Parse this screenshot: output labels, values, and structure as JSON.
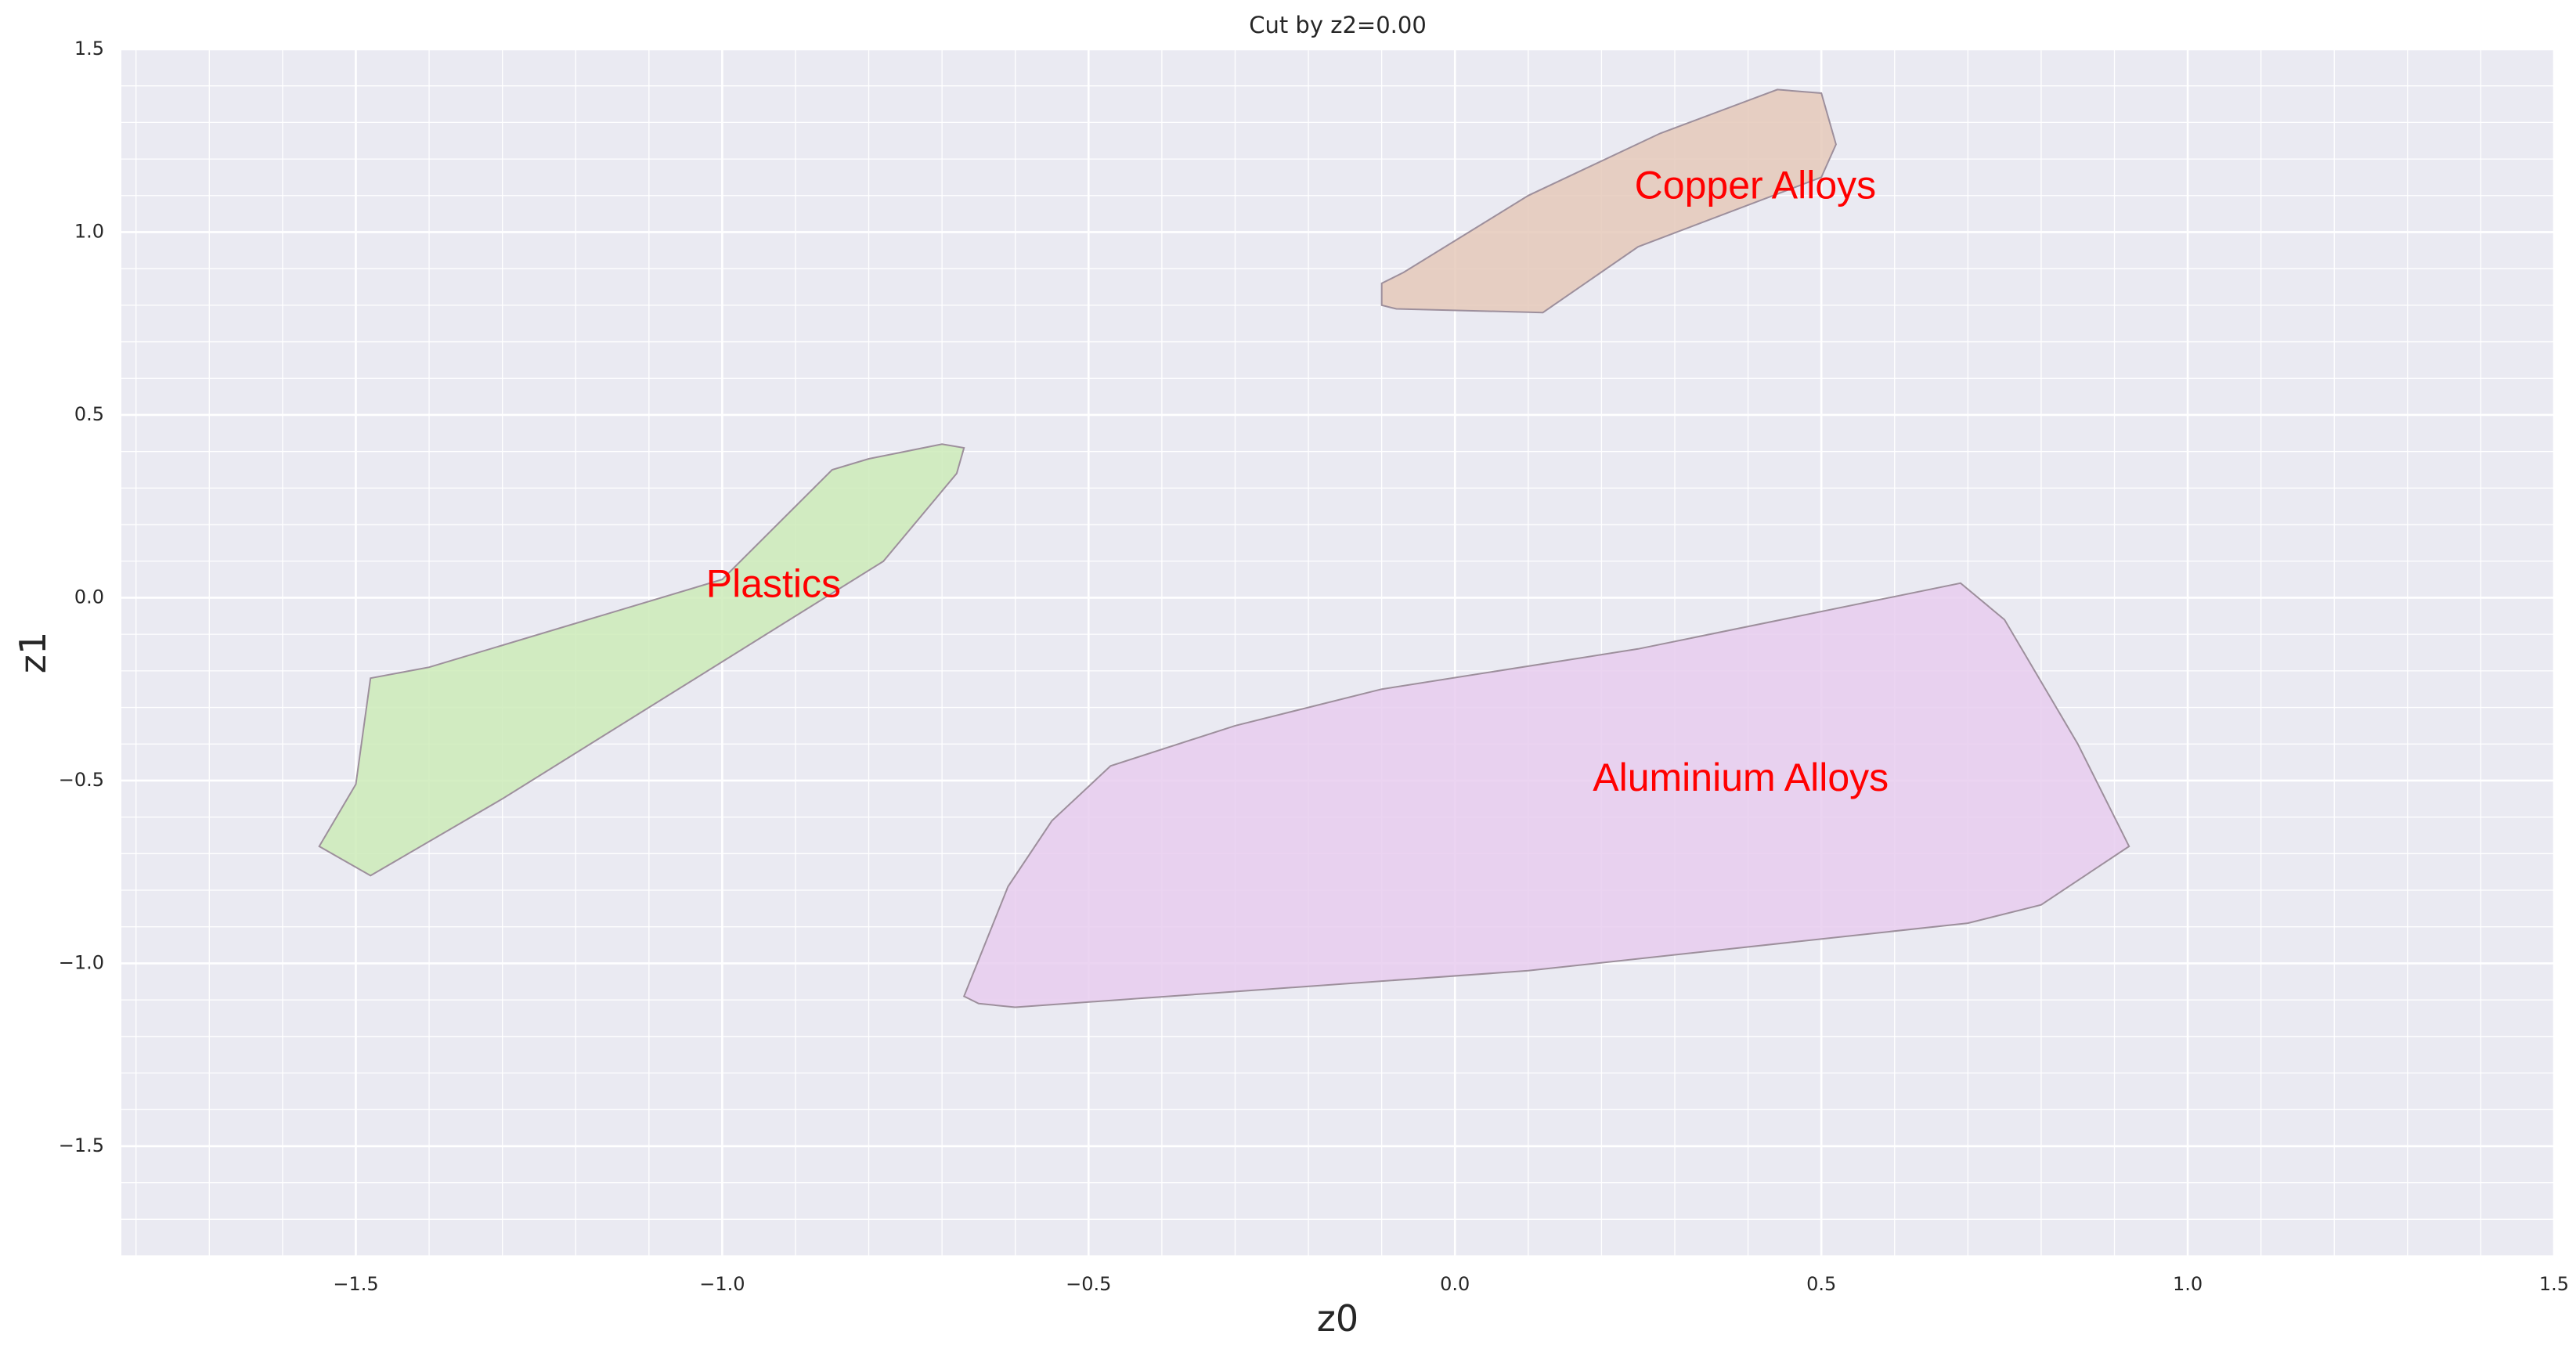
{
  "chart_data": {
    "type": "area",
    "title": "Cut by z2=0.00",
    "xlabel": "z0",
    "ylabel": "z1",
    "xlim": [
      -1.82,
      1.5
    ],
    "ylim": [
      -1.8,
      1.5
    ],
    "grid": true,
    "grid_minor": true,
    "x_ticks": [
      -1.5,
      -1.0,
      -0.5,
      0.0,
      0.5,
      1.0,
      1.5
    ],
    "x_tick_labels": [
      "−1.5",
      "−1.0",
      "−0.5",
      "0.0",
      "0.5",
      "1.0",
      "1.5"
    ],
    "y_ticks": [
      -1.5,
      -1.0,
      -0.5,
      0.0,
      0.5,
      1.0,
      1.5
    ],
    "y_tick_labels": [
      "−1.5",
      "−1.0",
      "−0.5",
      "0.0",
      "0.5",
      "1.0",
      "1.5"
    ],
    "regions": [
      {
        "name": "Copper Alloys",
        "fill": "#e5c9ba",
        "label_at": [
          0.41,
          1.12
        ],
        "points": [
          [
            -0.1,
            0.8
          ],
          [
            -0.1,
            0.86
          ],
          [
            -0.07,
            0.89
          ],
          [
            0.1,
            1.1
          ],
          [
            0.28,
            1.27
          ],
          [
            0.44,
            1.39
          ],
          [
            0.5,
            1.38
          ],
          [
            0.52,
            1.24
          ],
          [
            0.5,
            1.15
          ],
          [
            0.25,
            0.96
          ],
          [
            0.12,
            0.78
          ],
          [
            -0.08,
            0.79
          ]
        ]
      },
      {
        "name": "Plastics",
        "fill": "#cdebb8",
        "label_at": [
          -0.93,
          0.03
        ],
        "points": [
          [
            -1.55,
            -0.68
          ],
          [
            -1.5,
            -0.51
          ],
          [
            -1.48,
            -0.22
          ],
          [
            -1.4,
            -0.19
          ],
          [
            -1.0,
            0.05
          ],
          [
            -0.85,
            0.35
          ],
          [
            -0.8,
            0.38
          ],
          [
            -0.7,
            0.42
          ],
          [
            -0.67,
            0.41
          ],
          [
            -0.68,
            0.34
          ],
          [
            -0.78,
            0.1
          ],
          [
            -1.3,
            -0.55
          ],
          [
            -1.48,
            -0.76
          ]
        ]
      },
      {
        "name": "Aluminium Alloys",
        "fill": "#e8cdee",
        "label_at": [
          0.39,
          -0.5
        ],
        "points": [
          [
            -0.67,
            -1.09
          ],
          [
            -0.65,
            -1.11
          ],
          [
            -0.6,
            -1.12
          ],
          [
            0.1,
            -1.02
          ],
          [
            0.7,
            -0.89
          ],
          [
            0.8,
            -0.84
          ],
          [
            0.92,
            -0.68
          ],
          [
            0.91,
            -0.64
          ],
          [
            0.85,
            -0.4
          ],
          [
            0.75,
            -0.06
          ],
          [
            0.69,
            0.04
          ],
          [
            0.25,
            -0.14
          ],
          [
            -0.1,
            -0.25
          ],
          [
            -0.3,
            -0.35
          ],
          [
            -0.47,
            -0.46
          ],
          [
            -0.55,
            -0.61
          ],
          [
            -0.61,
            -0.79
          ]
        ]
      }
    ]
  }
}
